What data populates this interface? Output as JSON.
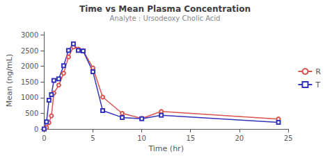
{
  "chart_data": {
    "type": "line",
    "title": "Time vs Mean Plasma Concentration",
    "subtitle": "Analyte : Ursodeoxy Cholic Acid",
    "xlabel": "Time (hr)",
    "ylabel": "Mean (ng/mL)",
    "x": [
      0,
      0.25,
      0.5,
      0.75,
      1.0,
      1.5,
      2.0,
      2.5,
      3.0,
      3.5,
      4.0,
      5.0,
      6.0,
      8.0,
      10.0,
      12.0,
      24.0
    ],
    "series": [
      {
        "name": "R",
        "color": "#d9534f",
        "marker": "circle",
        "values": [
          0,
          50,
          200,
          420,
          1150,
          1400,
          1780,
          2300,
          2620,
          2550,
          2500,
          1950,
          1020,
          500,
          340,
          560,
          320
        ]
      },
      {
        "name": "T",
        "color": "#3333bb",
        "marker": "square",
        "values": [
          0,
          230,
          920,
          1100,
          1550,
          1600,
          2020,
          2510,
          2720,
          2510,
          2490,
          1830,
          590,
          370,
          330,
          440,
          210
        ]
      }
    ],
    "xlim": [
      0,
      25
    ],
    "xticks": [
      0,
      5,
      10,
      15,
      20,
      25
    ],
    "ylim": [
      0,
      3100
    ],
    "yticks": [
      0,
      500,
      1000,
      1500,
      2000,
      2500,
      3000
    ],
    "grid": false,
    "legend": "right"
  }
}
